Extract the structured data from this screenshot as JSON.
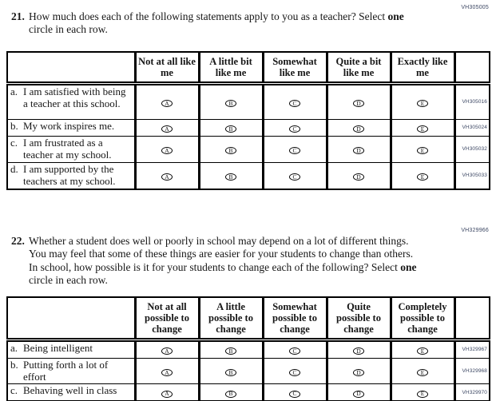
{
  "colors": {
    "code_text": "#3c4763",
    "table_border": "#000000",
    "page_bg": "#ffffff"
  },
  "questions": [
    {
      "number": "21.",
      "header_code": "VH305005",
      "text_parts": {
        "before": "How much does each of the following statements apply to you as a teacher? Select ",
        "bold": "one",
        "after": " circle in each row."
      },
      "table": {
        "columns": [
          "Not at all like me",
          "A little bit like me",
          "Somewhat like me",
          "Quite a bit like me",
          "Exactly like me"
        ],
        "bubbles": [
          "A",
          "B",
          "C",
          "D",
          "E"
        ],
        "rows": [
          {
            "letter": "a.",
            "label": "I am satisfied with being a teacher at this school.",
            "code": "VH305016"
          },
          {
            "letter": "b.",
            "label": "My work inspires me.",
            "code": "VH305024"
          },
          {
            "letter": "c.",
            "label": "I am frustrated as a teacher at my school.",
            "code": "VH305032"
          },
          {
            "letter": "d.",
            "label": "I am supported by the teachers at my school.",
            "code": "VH305033"
          }
        ]
      }
    },
    {
      "number": "22.",
      "header_code": "VH329966",
      "text_parts": {
        "before": "Whether a student does well or poorly in school may depend on a lot of different things. You may feel that some of these things are easier for your students to change than others. In school, how possible is it for your students to change each of the following? Select ",
        "bold": "one",
        "after": " circle in each row."
      },
      "table": {
        "columns": [
          "Not at all possible to change",
          "A little possible to change",
          "Somewhat possible to change",
          "Quite possible to change",
          "Completely possible to change"
        ],
        "bubbles": [
          "A",
          "B",
          "C",
          "D",
          "E"
        ],
        "rows": [
          {
            "letter": "a.",
            "label": "Being intelligent",
            "code": "VH329967"
          },
          {
            "letter": "b.",
            "label": "Putting forth a lot of effort",
            "code": "VH329968"
          },
          {
            "letter": "c.",
            "label": "Behaving well in class",
            "code": "VH329970"
          }
        ]
      }
    }
  ]
}
